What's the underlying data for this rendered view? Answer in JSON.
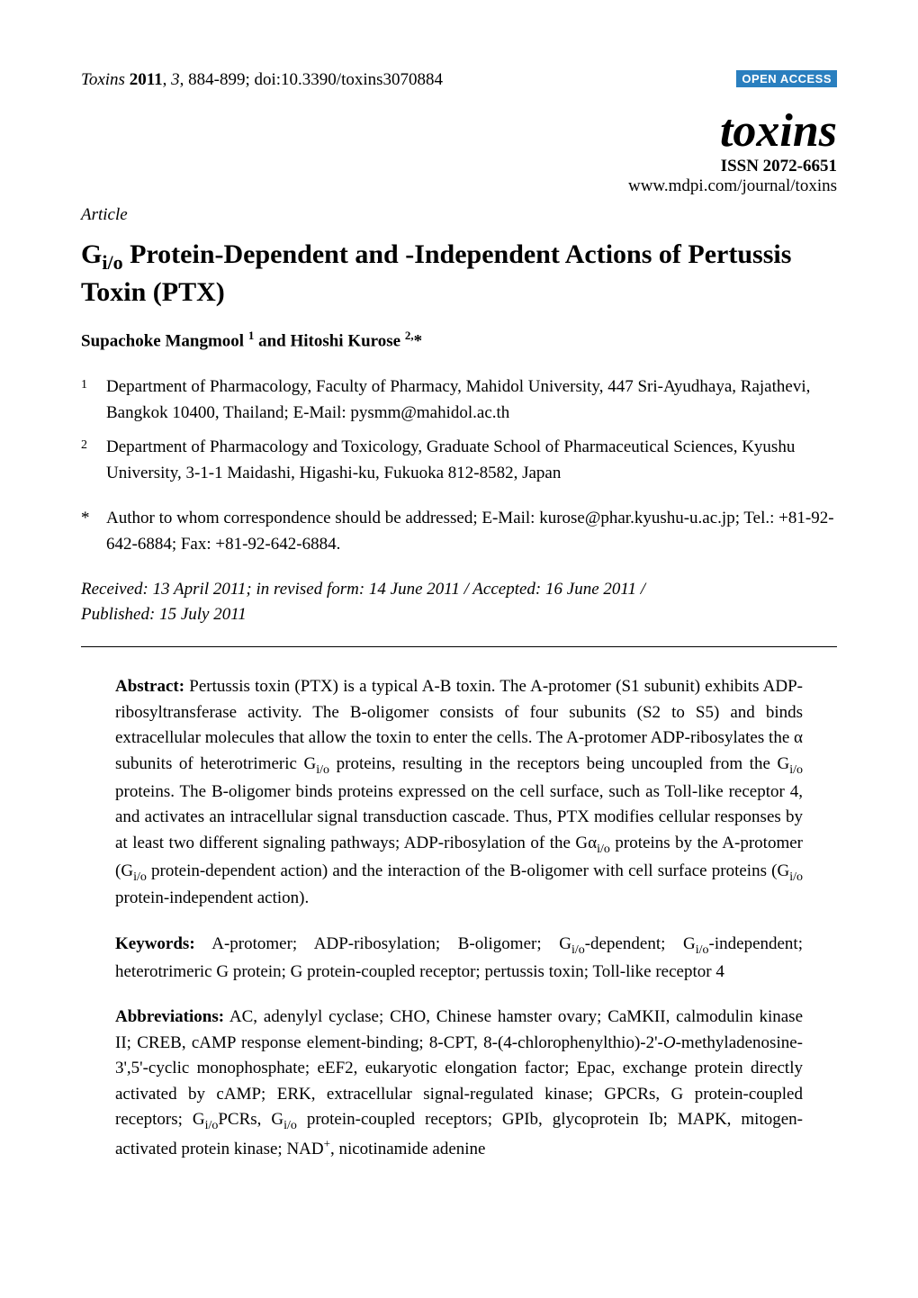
{
  "header": {
    "journal_abbrev_italic": "Toxins",
    "year_bold": "2011",
    "volume_pages_italic": "3",
    "pages": "884-899",
    "doi": "doi:10.3390/toxins3070884",
    "open_access": "OPEN ACCESS",
    "journal_name": "toxins",
    "issn": "ISSN 2072-6651",
    "url": "www.mdpi.com/journal/toxins"
  },
  "article": {
    "type": "Article",
    "title_html": "G<sub>i/o</sub> Protein-Dependent and -Independent Actions of Pertussis Toxin (PTX)",
    "authors_html": "Supachoke Mangmool <sup>1</sup> and Hitoshi Kurose <sup>2,</sup>*"
  },
  "affiliations": [
    {
      "num": "1",
      "text": "Department of Pharmacology, Faculty of Pharmacy, Mahidol University, 447 Sri-Ayudhaya, Rajathevi, Bangkok 10400, Thailand; E-Mail: pysmm@mahidol.ac.th"
    },
    {
      "num": "2",
      "text": "Department of Pharmacology and Toxicology, Graduate School of Pharmaceutical Sciences, Kyushu University, 3-1-1 Maidashi, Higashi-ku, Fukuoka 812-8582, Japan"
    }
  ],
  "correspondence": {
    "star": "*",
    "text": "Author to whom correspondence should be addressed; E-Mail: kurose@phar.kyushu-u.ac.jp; Tel.: +81-92-642-6884; Fax: +81-92-642-6884."
  },
  "dates": {
    "line1": "Received: 13 April 2011; in revised form: 14 June 2011 / Accepted: 16 June 2011 /",
    "line2": "Published: 15 July 2011"
  },
  "abstract": {
    "label": "Abstract:",
    "text_html": "Pertussis toxin (PTX) is a typical A-B toxin. The A-protomer (S1 subunit) exhibits ADP-ribosyltransferase activity. The B-oligomer consists of four subunits (S2 to S5) and binds extracellular molecules that allow the toxin to enter the cells. The A-protomer ADP-ribosylates the α subunits of heterotrimeric G<sub>i/o</sub> proteins, resulting in the receptors being uncoupled from the G<sub>i/o</sub> proteins. The B-oligomer binds proteins expressed on the cell surface, such as Toll-like receptor 4, and activates an intracellular signal transduction cascade. Thus, PTX modifies cellular responses by at least two different signaling pathways; ADP-ribosylation of the Gα<sub>i/o</sub> proteins by the A-protomer (G<sub>i/o</sub> protein-dependent action) and the interaction of the B-oligomer with cell surface proteins (G<sub>i/o</sub> protein-independent action)."
  },
  "keywords": {
    "label": "Keywords:",
    "text_html": "A-protomer; ADP-ribosylation; B-oligomer; G<sub>i/o</sub>-dependent; G<sub>i/o</sub>-independent; heterotrimeric G protein; G protein-coupled receptor; pertussis toxin; Toll-like receptor 4"
  },
  "abbreviations": {
    "label": "Abbreviations:",
    "text_html": "AC, adenylyl cyclase; CHO, Chinese hamster ovary; CaMKII, calmodulin kinase II; CREB, cAMP response element-binding; 8-CPT, 8-(4-chlorophenylthio)-2'-<i>O</i>-methyladenosine-3',5'-cyclic monophosphate; eEF2, eukaryotic elongation factor; Epac, exchange protein directly activated by cAMP; ERK, extracellular signal-regulated kinase; GPCRs, G protein-coupled receptors; G<sub>i/o</sub>PCRs, G<sub>i/o</sub> protein-coupled receptors; GPIb, glycoprotein Ib; MAPK, mitogen-activated protein kinase; NAD<sup>+</sup>, nicotinamide adenine"
  },
  "colors": {
    "open_access_bg": "#2a7fbf",
    "open_access_fg": "#ffffff",
    "text": "#000000",
    "bg": "#ffffff"
  }
}
